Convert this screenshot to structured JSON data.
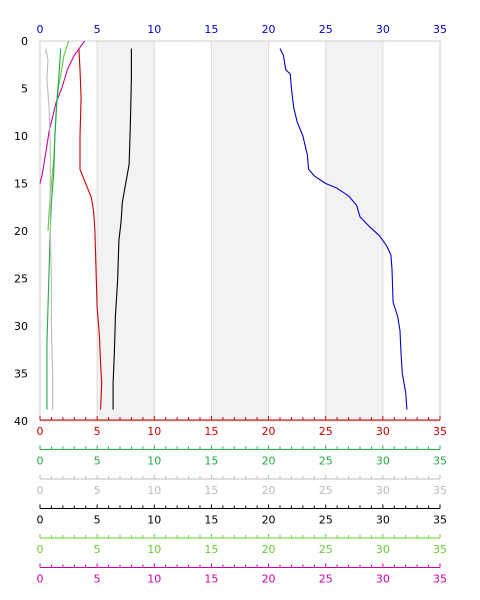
{
  "chart_data": {
    "type": "line",
    "title": "",
    "y_axis": {
      "label": "",
      "range": [
        0,
        40
      ],
      "ticks": [
        "0",
        "5",
        "10",
        "15",
        "20",
        "25",
        "30",
        "35",
        "40"
      ],
      "inverted": true,
      "color": "#000000"
    },
    "top_axis": {
      "range": [
        0,
        35
      ],
      "ticks": [
        "0",
        "5",
        "10",
        "15",
        "20",
        "25",
        "30",
        "35"
      ],
      "color": "#0000cc"
    },
    "bottom_axes": [
      {
        "id": "red",
        "color": "#cc0000",
        "range": [
          0,
          35
        ],
        "ticks": [
          "0",
          "5",
          "10",
          "15",
          "20",
          "25",
          "30",
          "35"
        ]
      },
      {
        "id": "green",
        "color": "#22aa44",
        "range": [
          0,
          35
        ],
        "ticks": [
          "0",
          "5",
          "10",
          "15",
          "20",
          "25",
          "30",
          "35"
        ]
      },
      {
        "id": "grey",
        "color": "#bbbbbb",
        "range": [
          0,
          35
        ],
        "ticks": [
          "0",
          "5",
          "10",
          "15",
          "20",
          "25",
          "30",
          "35"
        ]
      },
      {
        "id": "black",
        "color": "#000000",
        "range": [
          0,
          35
        ],
        "ticks": [
          "0",
          "5",
          "10",
          "15",
          "20",
          "25",
          "30",
          "35"
        ]
      },
      {
        "id": "lime",
        "color": "#66cc33",
        "range": [
          0,
          35
        ],
        "ticks": [
          "0",
          "5",
          "10",
          "15",
          "20",
          "25",
          "30",
          "35"
        ]
      },
      {
        "id": "magenta",
        "color": "#cc00aa",
        "range": [
          0,
          35
        ],
        "ticks": [
          "0",
          "5",
          "10",
          "15",
          "20",
          "25",
          "30",
          "35"
        ]
      }
    ],
    "grid": true,
    "shaded_bands": [
      [
        5,
        10
      ],
      [
        15,
        20
      ],
      [
        25,
        30
      ]
    ],
    "series": [
      {
        "color": "#0000cc",
        "axis": "top",
        "points": [
          [
            21.0,
            0.8
          ],
          [
            21.3,
            1.5
          ],
          [
            21.5,
            3.0
          ],
          [
            21.9,
            3.5
          ],
          [
            22.0,
            5.0
          ],
          [
            22.2,
            7.0
          ],
          [
            22.5,
            8.5
          ],
          [
            23.0,
            10.0
          ],
          [
            23.2,
            11.0
          ],
          [
            23.4,
            12.0
          ],
          [
            23.5,
            13.5
          ],
          [
            24.0,
            14.2
          ],
          [
            25.0,
            15.0
          ],
          [
            26.0,
            15.5
          ],
          [
            27.0,
            16.3
          ],
          [
            27.7,
            17.3
          ],
          [
            28.0,
            18.5
          ],
          [
            28.8,
            19.5
          ],
          [
            29.7,
            20.5
          ],
          [
            30.3,
            21.5
          ],
          [
            30.7,
            22.5
          ],
          [
            30.8,
            24.0
          ],
          [
            30.9,
            27.5
          ],
          [
            31.3,
            29.0
          ],
          [
            31.5,
            30.5
          ],
          [
            31.6,
            33.0
          ],
          [
            31.7,
            35.0
          ],
          [
            32.0,
            37.0
          ],
          [
            32.1,
            38.8
          ]
        ]
      },
      {
        "color": "#000000",
        "axis": "black",
        "points": [
          [
            8.0,
            0.8
          ],
          [
            8.0,
            4.0
          ],
          [
            7.9,
            9.0
          ],
          [
            7.8,
            13.0
          ],
          [
            7.5,
            15.0
          ],
          [
            7.2,
            17.0
          ],
          [
            7.1,
            19.0
          ],
          [
            6.9,
            21.0
          ],
          [
            6.8,
            25.0
          ],
          [
            6.6,
            29.0
          ],
          [
            6.5,
            33.0
          ],
          [
            6.4,
            36.0
          ],
          [
            6.4,
            38.8
          ]
        ]
      },
      {
        "color": "#cc0000",
        "axis": "red",
        "points": [
          [
            3.4,
            0.8
          ],
          [
            3.5,
            3.0
          ],
          [
            3.6,
            6.0
          ],
          [
            3.5,
            10.0
          ],
          [
            3.5,
            13.5
          ],
          [
            4.0,
            15.0
          ],
          [
            4.5,
            16.5
          ],
          [
            4.7,
            18.0
          ],
          [
            4.8,
            20.0
          ],
          [
            4.9,
            24.0
          ],
          [
            5.0,
            28.0
          ],
          [
            5.2,
            31.0
          ],
          [
            5.3,
            34.0
          ],
          [
            5.4,
            36.0
          ],
          [
            5.3,
            38.8
          ]
        ]
      },
      {
        "color": "#cc00aa",
        "axis": "magenta",
        "points": [
          [
            3.9,
            0.0
          ],
          [
            3.0,
            1.5
          ],
          [
            2.4,
            3.0
          ],
          [
            1.9,
            5.0
          ],
          [
            1.4,
            6.5
          ],
          [
            1.1,
            8.0
          ],
          [
            0.8,
            9.5
          ],
          [
            0.6,
            11.0
          ],
          [
            0.4,
            12.5
          ],
          [
            0.2,
            14.0
          ],
          [
            0.0,
            15.0
          ]
        ]
      },
      {
        "color": "#66cc33",
        "axis": "lime",
        "points": [
          [
            2.5,
            0.0
          ],
          [
            2.1,
            1.5
          ],
          [
            1.9,
            3.0
          ],
          [
            1.6,
            5.0
          ],
          [
            1.4,
            7.5
          ],
          [
            1.3,
            10.0
          ],
          [
            1.2,
            12.5
          ],
          [
            1.0,
            15.0
          ],
          [
            0.8,
            18.0
          ],
          [
            0.7,
            20.0
          ]
        ]
      },
      {
        "color": "#22aa44",
        "axis": "green",
        "points": [
          [
            1.8,
            0.8
          ],
          [
            1.7,
            3.0
          ],
          [
            1.5,
            6.0
          ],
          [
            1.3,
            10.0
          ],
          [
            1.2,
            14.0
          ],
          [
            1.0,
            17.0
          ],
          [
            0.9,
            20.0
          ],
          [
            0.8,
            24.0
          ],
          [
            0.7,
            28.0
          ],
          [
            0.6,
            32.0
          ],
          [
            0.6,
            36.0
          ],
          [
            0.6,
            38.8
          ]
        ]
      },
      {
        "color": "#bbbbbb",
        "axis": "grey",
        "points": [
          [
            0.5,
            0.8
          ],
          [
            0.7,
            2.0
          ],
          [
            0.6,
            4.0
          ],
          [
            0.8,
            7.0
          ],
          [
            0.9,
            11.0
          ],
          [
            0.9,
            15.0
          ],
          [
            0.9,
            20.0
          ],
          [
            1.0,
            25.0
          ],
          [
            1.0,
            30.0
          ],
          [
            1.1,
            35.0
          ],
          [
            1.1,
            38.8
          ]
        ]
      }
    ]
  }
}
